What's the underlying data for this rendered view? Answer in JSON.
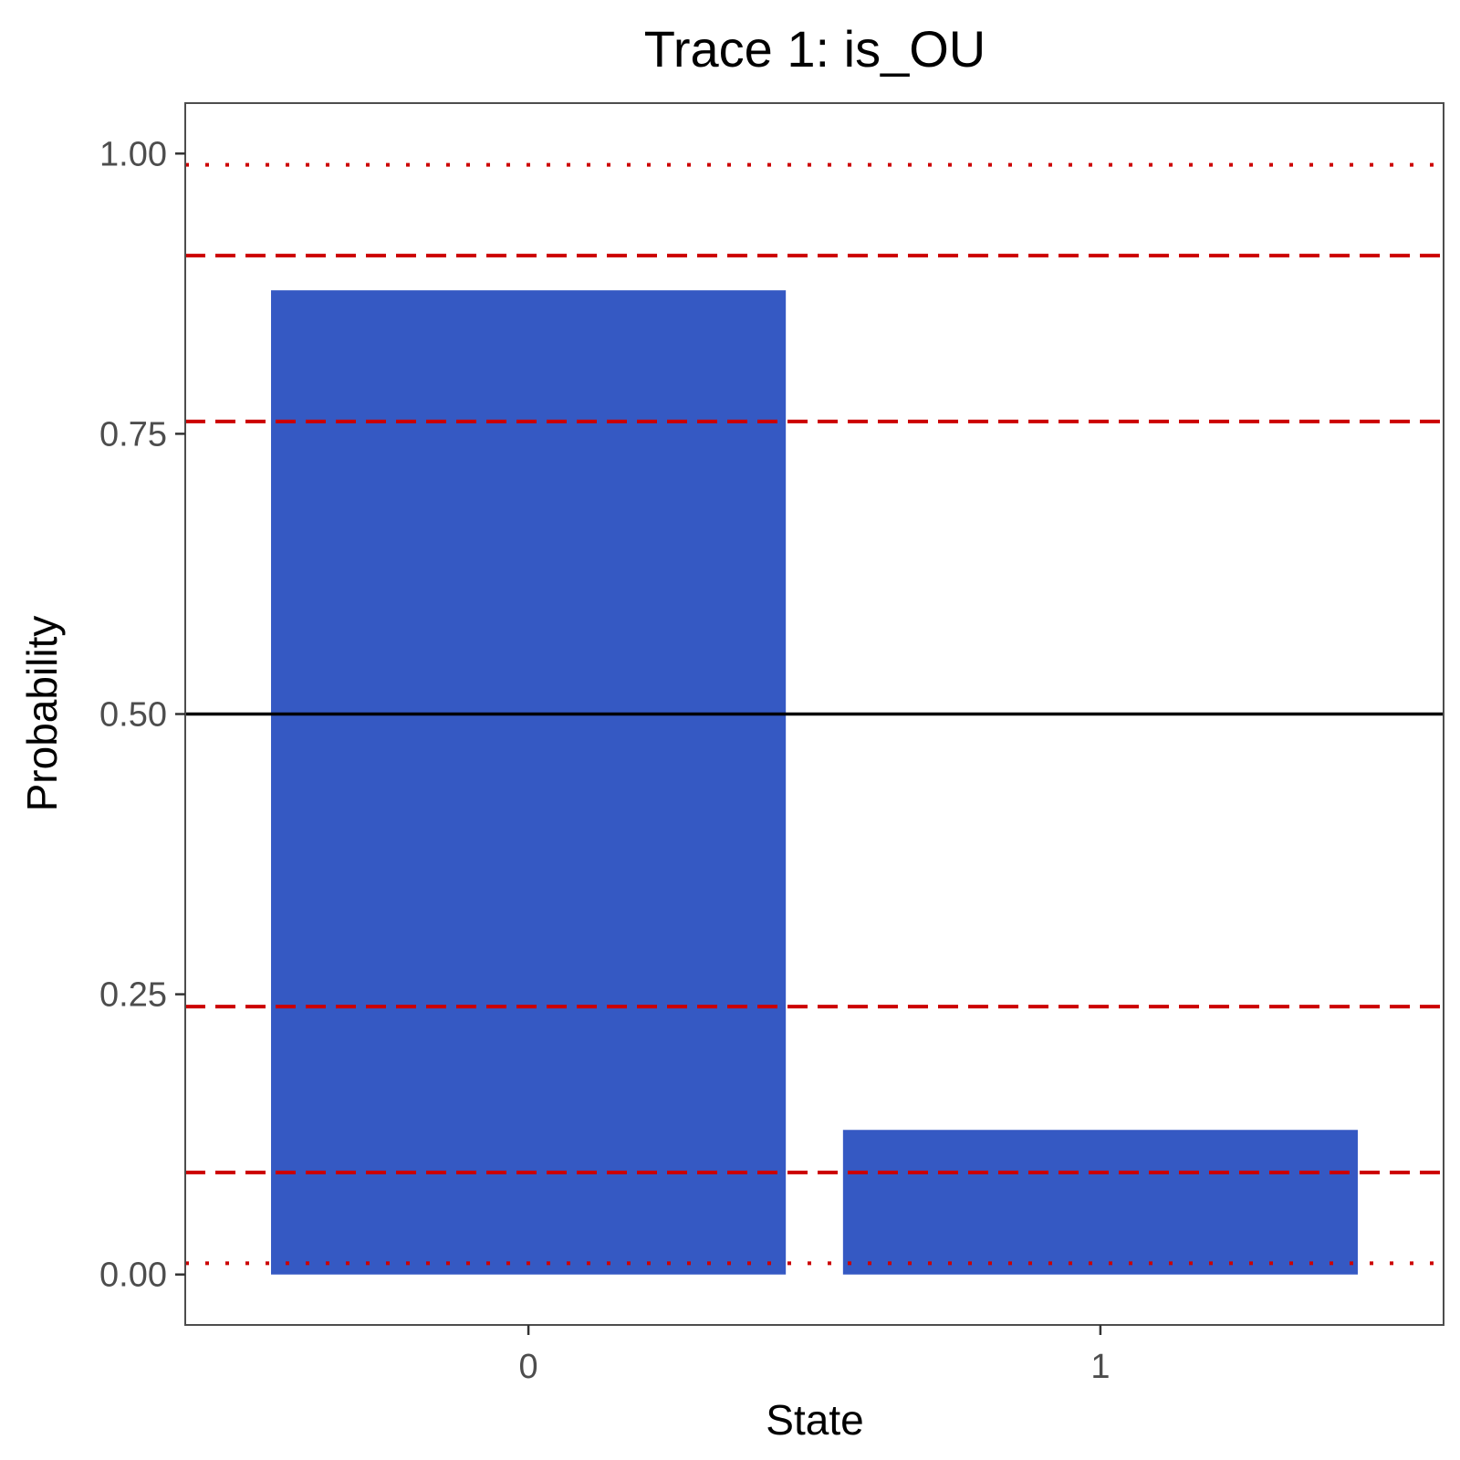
{
  "chart_data": {
    "type": "bar",
    "title": "Trace 1: is_OU",
    "xlabel": "State",
    "ylabel": "Probability",
    "categories": [
      "0",
      "1"
    ],
    "values": [
      0.878,
      0.129
    ],
    "bar_color": "#3559C3",
    "ylim": [
      -0.045,
      1.045
    ],
    "yticks": [
      0.0,
      0.25,
      0.5,
      0.75,
      1.0
    ],
    "ytick_labels": [
      "0.00",
      "0.25",
      "0.50",
      "0.75",
      "1.00"
    ],
    "grid": false,
    "reference_lines": [
      {
        "y": 0.5,
        "style": "solid",
        "color": "#000000"
      },
      {
        "y": 0.239,
        "style": "dashed",
        "color": "#CC0000"
      },
      {
        "y": 0.761,
        "style": "dashed",
        "color": "#CC0000"
      },
      {
        "y": 0.091,
        "style": "dashed",
        "color": "#CC0000"
      },
      {
        "y": 0.909,
        "style": "dashed",
        "color": "#CC0000"
      },
      {
        "y": 0.01,
        "style": "dotted",
        "color": "#CC0000"
      },
      {
        "y": 0.99,
        "style": "dotted",
        "color": "#CC0000"
      }
    ]
  }
}
